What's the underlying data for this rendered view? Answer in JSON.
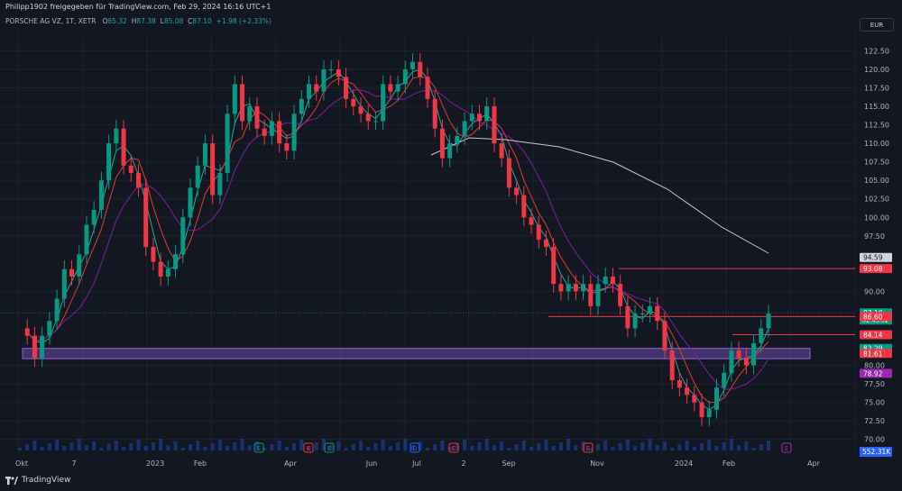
{
  "header": {
    "attribution": "Philipp1902 freigegeben für TradingView.com, Feb 29, 2024 16:16 UTC+1",
    "symbol": "PORSCHE AG VZ, 1T, XETR",
    "ohlc": {
      "o_label": "O",
      "o": "85.32",
      "h_label": "H",
      "h": "87.38",
      "l_label": "L",
      "l": "85.08",
      "c_label": "C",
      "c": "87.10",
      "chg": "+1.98 (+2.33%)"
    },
    "currency": "EUR"
  },
  "branding": {
    "logo_text": "TradingView"
  },
  "chart_data": {
    "type": "candlestick",
    "y_axis": {
      "ticks": [
        "122.50",
        "120.00",
        "117.50",
        "115.00",
        "112.50",
        "110.00",
        "107.50",
        "105.00",
        "102.50",
        "100.00",
        "97.50",
        "90.00",
        "80.00",
        "77.50",
        "75.00",
        "72.50",
        "70.00"
      ],
      "range": [
        68.5,
        124.5
      ]
    },
    "x_axis": {
      "ticks": [
        "Okt",
        "7",
        "2023",
        "Feb",
        "Apr",
        "Jun",
        "Jul",
        "2",
        "Sep",
        "Nov",
        "2024",
        "Feb",
        "Apr"
      ]
    },
    "price_labels": [
      {
        "value": 94.59,
        "text": "94.59",
        "color": "#d1d4dc",
        "textcolor": "#131722"
      },
      {
        "value": 93.08,
        "text": "93.08",
        "color": "#f23645",
        "textcolor": "#ffffff"
      },
      {
        "value": 87.1,
        "text": "87.10",
        "color": "#089981",
        "textcolor": "#ffffff",
        "sub": "02:43:02"
      },
      {
        "value": 86.6,
        "text": "86.60",
        "color": "#f23645",
        "textcolor": "#ffffff"
      },
      {
        "value": 84.14,
        "text": "84.14",
        "color": "#f23645",
        "textcolor": "#ffffff"
      },
      {
        "value": 82.29,
        "text": "82.29",
        "color": "#089981",
        "textcolor": "#ffffff"
      },
      {
        "value": 81.61,
        "text": "81.61",
        "color": "#f23645",
        "textcolor": "#ffffff"
      },
      {
        "value": 78.92,
        "text": "78.92",
        "color": "#9c27b0",
        "textcolor": "#ffffff"
      }
    ],
    "volume_label": "552.31K",
    "horizontal_lines": [
      {
        "value": 93.08,
        "color": "#f23645"
      },
      {
        "value": 86.6,
        "color": "#f23645"
      },
      {
        "value": 84.14,
        "color": "#f23645"
      }
    ],
    "zone": {
      "from": 80.9,
      "to": 82.3,
      "color": "#7e57c2"
    },
    "events": [
      "E",
      "E",
      "E",
      "D",
      "E",
      "E",
      "E"
    ],
    "series_prices": [
      85,
      84,
      81,
      84,
      86,
      89,
      93,
      92,
      95,
      99,
      101,
      105,
      110,
      112,
      107,
      106,
      104,
      96,
      94,
      92,
      93,
      95,
      100,
      104,
      107,
      110,
      103,
      106,
      114,
      118,
      113,
      115,
      112,
      111,
      113,
      110,
      109,
      114,
      116,
      118,
      117,
      120,
      120,
      119,
      116,
      115,
      114,
      113,
      113,
      118,
      117,
      118,
      120,
      121,
      119,
      116,
      112,
      108,
      110,
      111,
      113,
      114,
      113,
      115,
      110,
      108,
      104,
      103,
      100,
      99,
      97,
      96,
      91,
      90,
      91,
      90,
      91,
      88,
      91,
      92,
      91,
      88,
      85,
      87,
      87,
      88,
      86,
      82,
      78,
      77,
      76,
      75,
      73,
      74,
      77,
      79,
      82,
      81,
      80,
      83,
      85,
      87
    ]
  }
}
